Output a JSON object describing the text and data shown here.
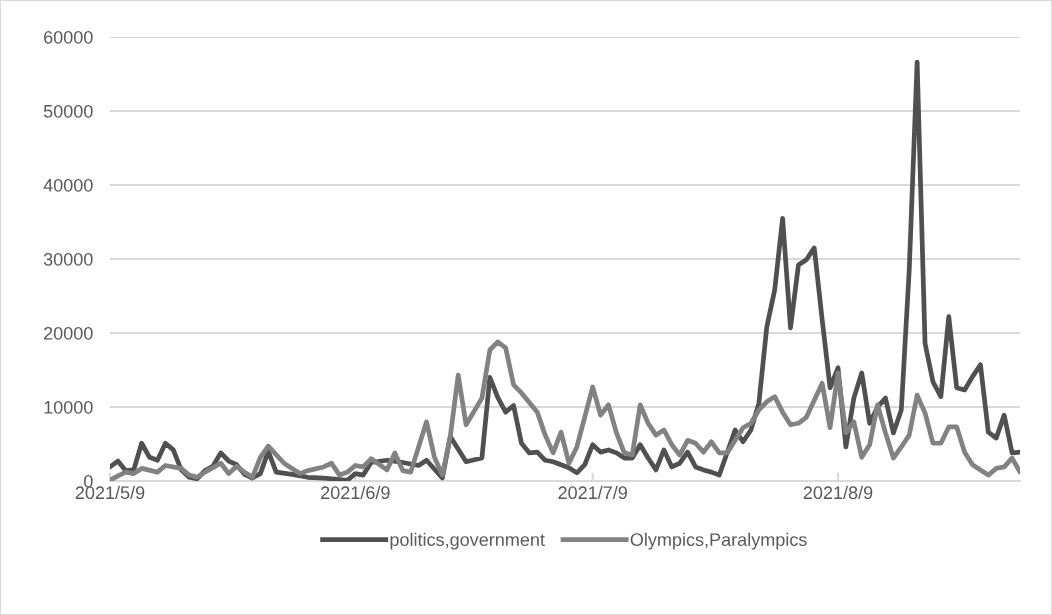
{
  "chart_data": {
    "type": "line",
    "xlim": [
      "2021-05-09",
      "2021-09-01"
    ],
    "xticks": [
      {
        "value": "2021-05-09",
        "label": "2021/5/9"
      },
      {
        "value": "2021-06-09",
        "label": "2021/6/9"
      },
      {
        "value": "2021-07-09",
        "label": "2021/7/9"
      },
      {
        "value": "2021-08-09",
        "label": "2021/8/9"
      }
    ],
    "ylim": [
      0,
      60000
    ],
    "yticks": [
      0,
      10000,
      20000,
      30000,
      40000,
      50000,
      60000
    ],
    "grid": "y",
    "legend": "bottom",
    "marker": "none",
    "line_style": "solid",
    "series": [
      {
        "name": "politics,government",
        "color": "#505050",
        "x": [
          "2021-05-09",
          "2021-05-10",
          "2021-05-11",
          "2021-05-12",
          "2021-05-13",
          "2021-05-14",
          "2021-05-15",
          "2021-05-16",
          "2021-05-17",
          "2021-05-18",
          "2021-05-19",
          "2021-05-20",
          "2021-05-21",
          "2021-05-22",
          "2021-05-23",
          "2021-05-24",
          "2021-05-25",
          "2021-05-26",
          "2021-05-27",
          "2021-05-28",
          "2021-05-29",
          "2021-05-30",
          "2021-06-01",
          "2021-06-03",
          "2021-06-05",
          "2021-06-07",
          "2021-06-08",
          "2021-06-09",
          "2021-06-10",
          "2021-06-11",
          "2021-06-13",
          "2021-06-15",
          "2021-06-17",
          "2021-06-18",
          "2021-06-20",
          "2021-06-21",
          "2021-06-23",
          "2021-06-25",
          "2021-06-26",
          "2021-06-27",
          "2021-06-28",
          "2021-06-29",
          "2021-06-30",
          "2021-07-01",
          "2021-07-02",
          "2021-07-03",
          "2021-07-04",
          "2021-07-06",
          "2021-07-07",
          "2021-07-08",
          "2021-07-09",
          "2021-07-10",
          "2021-07-11",
          "2021-07-12",
          "2021-07-13",
          "2021-07-14",
          "2021-07-15",
          "2021-07-16",
          "2021-07-17",
          "2021-07-18",
          "2021-07-19",
          "2021-07-20",
          "2021-07-21",
          "2021-07-22",
          "2021-07-23",
          "2021-07-24",
          "2021-07-25",
          "2021-07-27",
          "2021-07-28",
          "2021-07-29",
          "2021-07-30",
          "2021-07-31",
          "2021-08-01",
          "2021-08-02",
          "2021-08-03",
          "2021-08-04",
          "2021-08-05",
          "2021-08-06",
          "2021-08-07",
          "2021-08-08",
          "2021-08-09",
          "2021-08-10",
          "2021-08-11",
          "2021-08-12",
          "2021-08-13",
          "2021-08-14",
          "2021-08-15",
          "2021-08-16",
          "2021-08-17",
          "2021-08-18",
          "2021-08-19",
          "2021-08-20",
          "2021-08-21",
          "2021-08-22",
          "2021-08-23",
          "2021-08-24",
          "2021-08-25",
          "2021-08-26",
          "2021-08-27",
          "2021-08-28",
          "2021-08-29",
          "2021-08-30",
          "2021-08-31",
          "2021-09-01"
        ],
        "values": [
          1900,
          2700,
          1400,
          1500,
          5100,
          3200,
          2800,
          5100,
          4200,
          1500,
          500,
          300,
          1400,
          2000,
          3800,
          2700,
          2200,
          900,
          400,
          1000,
          4000,
          1200,
          900,
          500,
          400,
          200,
          100,
          1000,
          800,
          2500,
          2800,
          2500,
          2100,
          2800,
          400,
          6000,
          2600,
          3100,
          14000,
          11300,
          9300,
          10200,
          5100,
          3800,
          3900,
          2800,
          2600,
          1800,
          1100,
          2200,
          4900,
          3900,
          4200,
          3800,
          3100,
          3100,
          4900,
          3100,
          1500,
          4200,
          1900,
          2400,
          3900,
          1900,
          1500,
          1200,
          800,
          6900,
          5300,
          6900,
          10500,
          20800,
          25800,
          35500,
          20700,
          29200,
          29900,
          31500,
          21800,
          12600,
          15300,
          4600,
          11200,
          14600,
          7800,
          10000,
          11200,
          6500,
          9600,
          28500,
          56600,
          18600,
          13400,
          11400,
          22200,
          12600,
          12300,
          14100,
          15700,
          6600,
          5800,
          8900,
          3800,
          3900
        ]
      },
      {
        "name": "Olympics,Paralympics",
        "color": "#828282",
        "x": [
          "2021-05-09",
          "2021-05-10",
          "2021-05-11",
          "2021-05-12",
          "2021-05-13",
          "2021-05-15",
          "2021-05-16",
          "2021-05-18",
          "2021-05-19",
          "2021-05-20",
          "2021-05-21",
          "2021-05-23",
          "2021-05-24",
          "2021-05-25",
          "2021-05-26",
          "2021-05-27",
          "2021-05-28",
          "2021-05-29",
          "2021-05-31",
          "2021-06-01",
          "2021-06-02",
          "2021-06-03",
          "2021-06-05",
          "2021-06-06",
          "2021-06-07",
          "2021-06-08",
          "2021-06-09",
          "2021-06-10",
          "2021-06-11",
          "2021-06-13",
          "2021-06-14",
          "2021-06-15",
          "2021-06-16",
          "2021-06-18",
          "2021-06-19",
          "2021-06-20",
          "2021-06-21",
          "2021-06-22",
          "2021-06-23",
          "2021-06-25",
          "2021-06-26",
          "2021-06-27",
          "2021-06-28",
          "2021-06-29",
          "2021-06-30",
          "2021-07-02",
          "2021-07-03",
          "2021-07-04",
          "2021-07-05",
          "2021-07-06",
          "2021-07-07",
          "2021-07-09",
          "2021-07-10",
          "2021-07-11",
          "2021-07-12",
          "2021-07-13",
          "2021-07-14",
          "2021-07-15",
          "2021-07-16",
          "2021-07-17",
          "2021-07-18",
          "2021-07-19",
          "2021-07-20",
          "2021-07-21",
          "2021-07-22",
          "2021-07-23",
          "2021-07-24",
          "2021-07-25",
          "2021-07-26",
          "2021-07-27",
          "2021-07-28",
          "2021-07-29",
          "2021-07-30",
          "2021-07-31",
          "2021-08-01",
          "2021-08-02",
          "2021-08-03",
          "2021-08-04",
          "2021-08-05",
          "2021-08-06",
          "2021-08-07",
          "2021-08-08",
          "2021-08-09",
          "2021-08-10",
          "2021-08-11",
          "2021-08-12",
          "2021-08-13",
          "2021-08-14",
          "2021-08-15",
          "2021-08-16",
          "2021-08-17",
          "2021-08-18",
          "2021-08-19",
          "2021-08-20",
          "2021-08-21",
          "2021-08-22",
          "2021-08-23",
          "2021-08-24",
          "2021-08-25",
          "2021-08-26",
          "2021-08-27",
          "2021-08-28",
          "2021-08-29",
          "2021-08-30",
          "2021-08-31",
          "2021-09-01"
        ],
        "values": [
          100,
          700,
          1200,
          1000,
          1700,
          1200,
          2100,
          1700,
          800,
          500,
          1200,
          2400,
          1000,
          2000,
          1200,
          500,
          3200,
          4700,
          2400,
          1700,
          1000,
          1400,
          1900,
          2400,
          800,
          1200,
          2100,
          1900,
          3000,
          1500,
          3800,
          1400,
          1200,
          8000,
          3200,
          800,
          6000,
          14300,
          7600,
          11200,
          17700,
          18800,
          18000,
          13000,
          11900,
          9300,
          6200,
          3800,
          6600,
          2400,
          4600,
          12700,
          8900,
          10300,
          6500,
          3800,
          3500,
          10300,
          7800,
          6200,
          6900,
          4900,
          3500,
          5500,
          5100,
          3900,
          5300,
          3800,
          3800,
          5500,
          7200,
          7800,
          9600,
          10700,
          11400,
          9300,
          7600,
          7800,
          8600,
          10900,
          13200,
          7200,
          14600,
          6500,
          8000,
          3200,
          4900,
          10300,
          6500,
          3100,
          4600,
          6200,
          11600,
          9200,
          5100,
          5100,
          7300,
          7300,
          3900,
          2200,
          1500,
          800,
          1700,
          1900,
          3100,
          1200
        ]
      }
    ]
  }
}
